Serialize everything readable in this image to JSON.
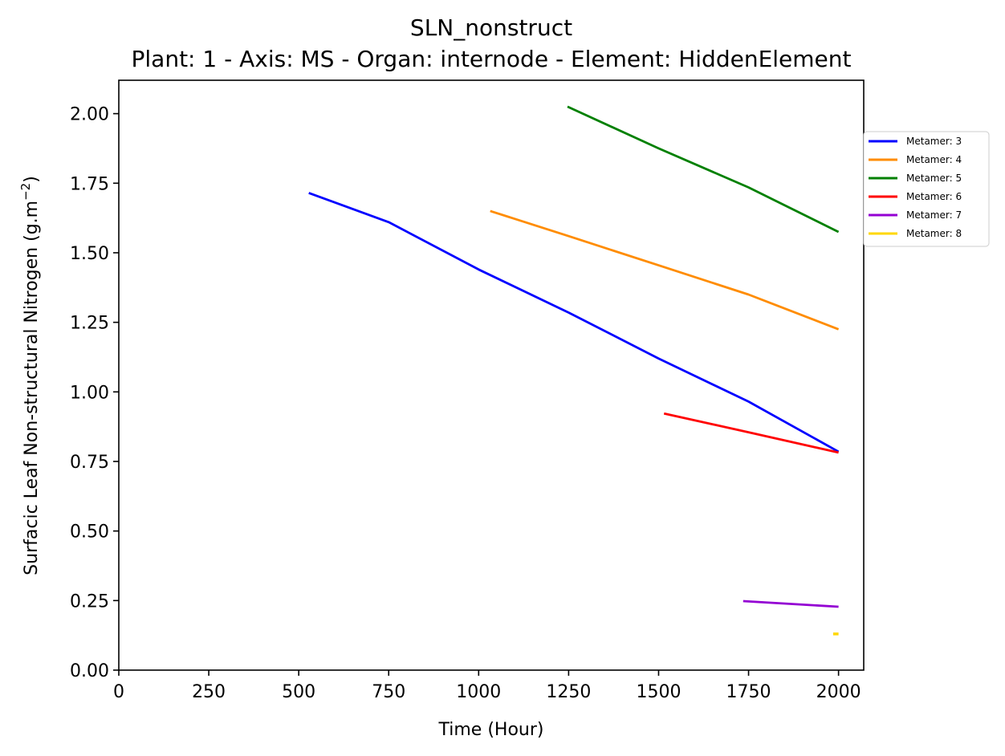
{
  "chart_data": {
    "type": "line",
    "title": "SLN_nonstruct",
    "subtitle": "Plant: 1 - Axis: MS - Organ: internode - Element: HiddenElement",
    "xlabel": "Time (Hour)",
    "ylabel_main": "Surfacic Leaf Non-structural Nitrogen (g.m",
    "ylabel_sup": "−2",
    "ylabel_close": ")",
    "xlim": [
      0,
      2070
    ],
    "ylim": [
      0,
      2.12
    ],
    "xticks": [
      0,
      250,
      500,
      750,
      1000,
      1250,
      1500,
      1750,
      2000
    ],
    "yticks": [
      0.0,
      0.25,
      0.5,
      0.75,
      1.0,
      1.25,
      1.5,
      1.75,
      2.0
    ],
    "xtick_labels": [
      "0",
      "250",
      "500",
      "750",
      "1000",
      "1250",
      "1500",
      "1750",
      "2000"
    ],
    "ytick_labels": [
      "0.00",
      "0.25",
      "0.50",
      "0.75",
      "1.00",
      "1.25",
      "1.50",
      "1.75",
      "2.00"
    ],
    "grid": false,
    "legend_position": "right, outside plot",
    "series": [
      {
        "name": "Metamer: 3",
        "color": "#0000ff",
        "x": [
          528,
          750,
          1000,
          1250,
          1500,
          1750,
          2000
        ],
        "y": [
          1.715,
          1.61,
          1.44,
          1.285,
          1.12,
          0.965,
          0.785
        ]
      },
      {
        "name": "Metamer: 4",
        "color": "#ff8c00",
        "x": [
          1032,
          1250,
          1500,
          1750,
          2000
        ],
        "y": [
          1.65,
          1.56,
          1.455,
          1.35,
          1.225
        ]
      },
      {
        "name": "Metamer: 5",
        "color": "#008000",
        "x": [
          1247,
          1500,
          1750,
          2000
        ],
        "y": [
          2.025,
          1.875,
          1.735,
          1.575
        ]
      },
      {
        "name": "Metamer: 6",
        "color": "#ff0000",
        "x": [
          1515,
          1750,
          2000
        ],
        "y": [
          0.922,
          0.855,
          0.782
        ]
      },
      {
        "name": "Metamer: 7",
        "color": "#9400d3",
        "x": [
          1735,
          2000
        ],
        "y": [
          0.248,
          0.228
        ]
      },
      {
        "name": "Metamer: 8",
        "color": "#ffd700",
        "x": [
          1985,
          2000
        ],
        "y": [
          0.13,
          0.13
        ]
      }
    ]
  }
}
